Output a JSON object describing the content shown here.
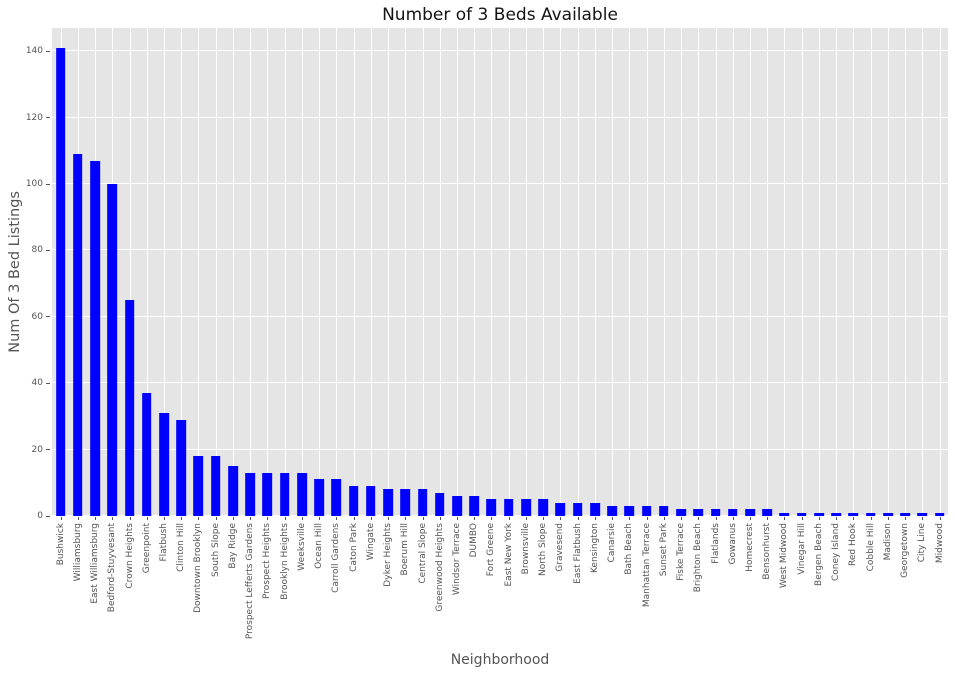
{
  "title": "Number of 3 Beds Available",
  "chart_data": {
    "type": "bar",
    "title": "Number of 3 Beds Available",
    "xlabel": "Neighborhood",
    "ylabel": "Num Of 3 Bed Listings",
    "categories": [
      "Bushwick",
      "Williamsburg",
      "East Williamsburg",
      "Bedford-Stuyvesant",
      "Crown Heights",
      "Greenpoint",
      "Flatbush",
      "Clinton Hill",
      "Downtown Brooklyn",
      "South Slope",
      "Bay Ridge",
      "Prospect Lefferts Gardens",
      "Prospect Heights",
      "Brooklyn Heights",
      "Weeksville",
      "Ocean Hill",
      "Carroll Gardens",
      "Caton Park",
      "Wingate",
      "Dyker Heights",
      "Boerum Hill",
      "Central Slope",
      "Greenwood Heights",
      "Windsor Terrace",
      "DUMBO",
      "Fort Greene",
      "East New York",
      "Brownsville",
      "North Slope",
      "Gravesend",
      "East Flatbush",
      "Kensington",
      "Canarsie",
      "Bath Beach",
      "Manhattan Terrace",
      "Sunset Park",
      "Fiske Terrace",
      "Brighton Beach",
      "Flatlands",
      "Gowanus",
      "Homecrest",
      "Bensonhurst",
      "West Midwood",
      "Vinegar Hill",
      "Bergen Beach",
      "Coney Island",
      "Red Hook",
      "Cobble Hill",
      "Madison",
      "Georgetown",
      "City Line",
      "Midwood"
    ],
    "values": [
      141,
      109,
      107,
      100,
      65,
      37,
      31,
      29,
      18,
      18,
      15,
      13,
      13,
      13,
      13,
      11,
      11,
      9,
      9,
      8,
      8,
      8,
      7,
      6,
      6,
      5,
      5,
      5,
      5,
      4,
      4,
      4,
      3,
      3,
      3,
      3,
      2,
      2,
      2,
      2,
      2,
      2,
      1,
      1,
      1,
      1,
      1,
      1,
      1,
      1,
      1,
      1
    ],
    "yticks": [
      0,
      20,
      40,
      60,
      80,
      100,
      120,
      140
    ],
    "ylim": [
      0,
      147
    ],
    "grid": "on",
    "legend": "none",
    "bar_color": "#0000ff",
    "panel_bg": "#e5e5e5",
    "grid_color": "#ffffff",
    "tick_text_color": "#555555",
    "title_color": "#141414"
  }
}
